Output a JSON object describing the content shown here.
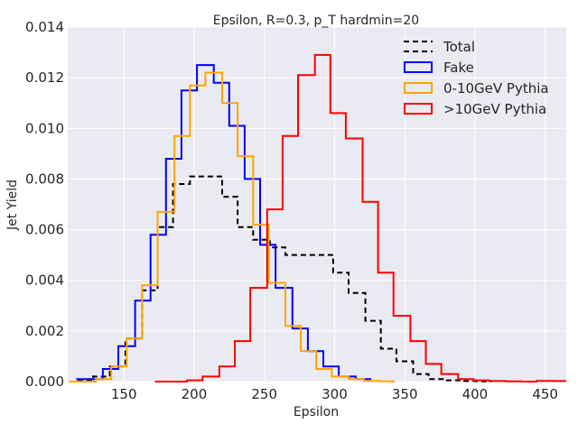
{
  "chart_data": {
    "type": "line",
    "step": true,
    "title": "Epsilon, R=0.3, p_T hardmin=20",
    "xlabel": "Epsilon",
    "ylabel": "Jet Yield",
    "xlim": [
      110,
      465
    ],
    "ylim": [
      0,
      0.014
    ],
    "xticks": [
      150,
      200,
      250,
      300,
      350,
      400,
      450
    ],
    "yticks": [
      0.0,
      0.002,
      0.004,
      0.006,
      0.008,
      0.01,
      0.012,
      0.014
    ],
    "ytick_labels": [
      "0.000",
      "0.002",
      "0.004",
      "0.006",
      "0.008",
      "0.010",
      "0.012",
      "0.014"
    ],
    "legend_position": "top-right",
    "background": "#eaeaf2",
    "series": [
      {
        "name": "Total",
        "color": "#000000",
        "dashed": true,
        "edges": [
          117,
          128,
          140,
          151,
          163,
          174,
          185,
          197,
          208,
          220,
          231,
          242,
          254,
          265,
          276,
          288,
          299,
          310,
          322,
          333,
          344,
          356,
          367,
          378,
          390,
          401,
          412
        ],
        "values": [
          5e-05,
          0.0002,
          0.0006,
          0.0017,
          0.0036,
          0.0061,
          0.0078,
          0.0081,
          0.0081,
          0.0073,
          0.0061,
          0.0056,
          0.0053,
          0.005,
          0.005,
          0.005,
          0.0043,
          0.0035,
          0.0024,
          0.0013,
          0.0008,
          0.0003,
          0.0001,
          5e-05,
          2e-05,
          1e-05
        ]
      },
      {
        "name": "Fake",
        "color": "#0000ff",
        "dashed": false,
        "edges": [
          116,
          124,
          135,
          146,
          158,
          169,
          180,
          191,
          202,
          214,
          225,
          236,
          247,
          258,
          270,
          281,
          292,
          303,
          315,
          326
        ],
        "values": [
          0.0001,
          0.0001,
          0.0005,
          0.0014,
          0.0032,
          0.0058,
          0.0088,
          0.0115,
          0.0125,
          0.0118,
          0.0101,
          0.008,
          0.0054,
          0.0037,
          0.0021,
          0.0012,
          0.0006,
          0.0002,
          0.0001
        ]
      },
      {
        "name": "0-10GeV Pythia",
        "color": "#ffa500",
        "dashed": false,
        "edges": [
          111,
          130,
          141,
          152,
          163,
          174,
          186,
          197,
          208,
          220,
          231,
          242,
          253,
          265,
          276,
          287,
          298,
          310,
          321,
          332,
          343
        ],
        "values": [
          0.0,
          0.0001,
          0.0006,
          0.0017,
          0.0038,
          0.0067,
          0.0097,
          0.0117,
          0.0122,
          0.011,
          0.0089,
          0.0062,
          0.0039,
          0.0022,
          0.0012,
          0.0005,
          0.0002,
          0.0001,
          3e-05,
          1e-05
        ]
      },
      {
        "name": ">10GeV Pythia",
        "color": "#ff0000",
        "dashed": false,
        "edges": [
          172,
          183,
          195,
          206,
          218,
          229,
          240,
          252,
          263,
          274,
          286,
          297,
          308,
          320,
          331,
          342,
          354,
          365,
          376,
          388,
          399,
          410,
          422,
          433,
          444,
          456,
          465
        ],
        "values": [
          0.0,
          0.0,
          5e-05,
          0.0002,
          0.0006,
          0.0016,
          0.0037,
          0.0068,
          0.0097,
          0.0121,
          0.0129,
          0.0106,
          0.0096,
          0.0071,
          0.0043,
          0.0026,
          0.0016,
          0.0007,
          0.0003,
          0.0001,
          5e-05,
          2e-05,
          1e-05,
          0.0,
          3e-05,
          2e-05
        ]
      }
    ]
  }
}
